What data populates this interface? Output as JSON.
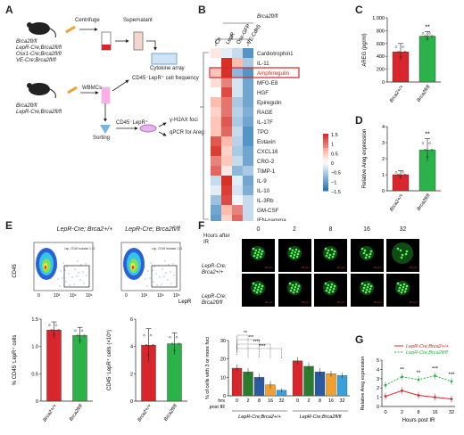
{
  "panels": {
    "A": "A",
    "B": "B",
    "C": "C",
    "D": "D",
    "E": "E",
    "F": "F",
    "G": "G"
  },
  "panel_a": {
    "genotypes1": [
      "Brca2fl/fl",
      "LepR-Cre;Brca2fl/fl",
      "Osx1-Cre;Brca2fl/fl",
      "VE-Cre;Brca2fl/fl"
    ],
    "centrifuge": "Centrifuge",
    "supernatant": "Supernatant",
    "cytokine": "Cytokine array",
    "wbmcs": "WBMCs",
    "genotypes2": [
      "Brca2fl/fl",
      "LepR-Cre;Brca2fl/fl"
    ],
    "freq": "CD45⁻LepR⁺ cell frequency",
    "sorting": "Sorting",
    "cells": "CD45⁻LepR⁺",
    "foci": "γ-H2AX foci",
    "qpcr": "qPCR for Areg"
  },
  "panel_b": {
    "group_label": "Brca2fl/fl",
    "columns": [
      "Ctr",
      "LepR",
      "Osx-GFP",
      "VE-Cdh5"
    ],
    "rows": [
      "Cardiotrophin1",
      "IL-11",
      "Amphiregulin",
      "MFG-E8",
      "HGF",
      "Epiregulin",
      "RAGE",
      "IL-17F",
      "TPO",
      "Eotaxin",
      "CXCL16",
      "CRG-2",
      "TIMP-1",
      "IL-9",
      "IL-10",
      "IL-3Rb",
      "GM-CSF",
      "IFN-gamma"
    ],
    "highlight_row": "Amphiregulin",
    "colorbar_ticks": [
      "1.5",
      "1",
      "0.5",
      "0",
      "−0.5",
      "−1",
      "−1.5"
    ],
    "matrix": [
      [
        0.2,
        -0.2,
        -0.4,
        -1.2
      ],
      [
        0.0,
        1.5,
        0.6,
        -0.6
      ],
      [
        0.5,
        1.6,
        -0.8,
        -1.2
      ],
      [
        0.3,
        0.9,
        -0.3,
        -1.0
      ],
      [
        0.0,
        1.3,
        -0.3,
        -1.0
      ],
      [
        0.6,
        1.0,
        -0.6,
        -1.0
      ],
      [
        0.4,
        1.0,
        -0.5,
        -0.9
      ],
      [
        0.5,
        1.2,
        -0.6,
        -1.0
      ],
      [
        0.5,
        1.1,
        -0.4,
        -1.2
      ],
      [
        1.2,
        0.6,
        -0.5,
        -1.2
      ],
      [
        1.4,
        0.4,
        -0.6,
        -1.0
      ],
      [
        0.9,
        0.5,
        -0.4,
        -1.0
      ],
      [
        1.1,
        0.2,
        -0.8,
        -0.6
      ],
      [
        -0.4,
        1.5,
        -0.2,
        -1.0
      ],
      [
        -0.2,
        1.4,
        -0.3,
        -0.9
      ],
      [
        -0.7,
        1.3,
        -0.1,
        -0.4
      ],
      [
        -1.0,
        0.6,
        0.9,
        -0.4
      ],
      [
        -1.1,
        0.4,
        1.1,
        -0.4
      ]
    ]
  },
  "panel_c": {
    "ylabel": "AREG (pg/ml)",
    "yticks": [
      "0",
      "200",
      "400",
      "600",
      "800",
      "1,000"
    ],
    "sig": "**",
    "groups": [
      "Brca2+/+",
      "Brca2fl/fl"
    ],
    "means": [
      470,
      715
    ],
    "errors": [
      130,
      70
    ]
  },
  "panel_d": {
    "ylabel": "Relative Areg expression",
    "yticks": [
      "0",
      "1",
      "2",
      "3",
      "4"
    ],
    "sig": "**",
    "groups": [
      "Brca2+/+",
      "Brca2fl/fl"
    ],
    "means": [
      1.0,
      2.55
    ],
    "errors": [
      0.25,
      0.7
    ]
  },
  "panel_e": {
    "titles": [
      "LepR-Cre; Brca2+/+",
      "LepR-Cre; Brca2fl/fl"
    ],
    "gates": [
      "Lep, CD45 Isolated 1.32",
      "Lep, CD45 Isolated 1.21"
    ],
    "y_axis": "CD45",
    "x_axis": "LepR",
    "flow_ticks": [
      "0",
      "10³",
      "10⁴",
      "10⁵"
    ],
    "bar1": {
      "ylabel": "% CD45⁻LepR⁺ cells",
      "yticks": [
        "0",
        "0.5",
        "1.0",
        "1.5"
      ],
      "means": [
        1.3,
        1.2
      ],
      "errors": [
        0.15,
        0.15
      ]
    },
    "bar2": {
      "ylabel": "CD45⁻LepR⁺ cells (×10⁵)",
      "yticks": [
        "0",
        "2",
        "4",
        "6"
      ],
      "means": [
        4.1,
        4.2
      ],
      "errors": [
        1.2,
        0.8
      ]
    },
    "groups": [
      "Brca2+/+",
      "Brca2fl/fl"
    ]
  },
  "panel_f": {
    "hours_label": "Hours after IR",
    "timepoints": [
      "0",
      "2",
      "8",
      "16",
      "32"
    ],
    "row_labels": [
      "LepR-Cre; Brca2+/+",
      "LepR-Cre; Brca2fl/fl"
    ],
    "scale": "20 μm",
    "ylabel": "% of cells with 3 or more foci",
    "yticks": [
      "0",
      "10",
      "20",
      "30"
    ],
    "sig": [
      "**",
      "***",
      "****",
      "****"
    ],
    "xrow1": "hrs",
    "xrow2": "post IR",
    "group_labels": [
      "LepR-Cre;Brca2+/+",
      "LepR-Cre;Brca2fl/fl"
    ],
    "means_wt": [
      15,
      13,
      10,
      6,
      3
    ],
    "means_ko": [
      19,
      16,
      13,
      12,
      11
    ],
    "errors_wt": [
      2,
      2,
      2,
      2,
      1
    ],
    "errors_ko": [
      2,
      2,
      2,
      1.5,
      1.5
    ]
  },
  "panel_g": {
    "legend": [
      "LepR-Cre;Brca2+/+",
      "LepR-Cre;Brca2fl/fl"
    ],
    "ylabel": "Relative Areg expression",
    "xlabel": "Hours post IR",
    "yticks": [
      "0",
      "1",
      "2",
      "3",
      "4",
      "5"
    ],
    "xticks": [
      "0",
      "2",
      "8",
      "16",
      "32"
    ],
    "sig": [
      "**",
      "**",
      "***",
      "***"
    ]
  },
  "chart_data": [
    {
      "type": "heatmap",
      "title": "",
      "columns": [
        "Ctr",
        "LepR",
        "Osx-GFP",
        "VE-Cdh5"
      ],
      "rows": [
        "Cardiotrophin1",
        "IL-11",
        "Amphiregulin",
        "MFG-E8",
        "HGF",
        "Epiregulin",
        "RAGE",
        "IL-17F",
        "TPO",
        "Eotaxin",
        "CXCL16",
        "CRG-2",
        "TIMP-1",
        "IL-9",
        "IL-10",
        "IL-3Rb",
        "GM-CSF",
        "IFN-gamma"
      ],
      "range": [
        -1.5,
        1.5
      ]
    },
    {
      "type": "bar",
      "categories": [
        "Brca2+/+",
        "Brca2fl/fl"
      ],
      "values": [
        470,
        715
      ],
      "ylabel": "AREG (pg/ml)",
      "ylim": [
        0,
        1000
      ]
    },
    {
      "type": "bar",
      "categories": [
        "Brca2+/+",
        "Brca2fl/fl"
      ],
      "values": [
        1.0,
        2.55
      ],
      "ylabel": "Relative Areg expression",
      "ylim": [
        0,
        4
      ]
    },
    {
      "type": "bar",
      "categories": [
        "Brca2+/+",
        "Brca2fl/fl"
      ],
      "values": [
        1.3,
        1.2
      ],
      "ylabel": "% CD45⁻LepR⁺ cells",
      "ylim": [
        0,
        1.5
      ]
    },
    {
      "type": "bar",
      "categories": [
        "Brca2+/+",
        "Brca2fl/fl"
      ],
      "values": [
        4.1,
        4.2
      ],
      "ylabel": "CD45⁻LepR⁺ cells (×10⁵)",
      "ylim": [
        0,
        6
      ]
    },
    {
      "type": "bar",
      "categories": [
        "0",
        "2",
        "8",
        "16",
        "32"
      ],
      "series": [
        {
          "name": "LepR-Cre;Brca2+/+",
          "values": [
            15,
            13,
            10,
            6,
            3
          ]
        },
        {
          "name": "LepR-Cre;Brca2fl/fl",
          "values": [
            19,
            16,
            13,
            12,
            11
          ]
        }
      ],
      "ylabel": "% of cells with 3 or more foci",
      "ylim": [
        0,
        30
      ]
    },
    {
      "type": "line",
      "x": [
        "0",
        "2",
        "8",
        "16",
        "32"
      ],
      "series": [
        {
          "name": "LepR-Cre;Brca2+/+",
          "values": [
            1.1,
            1.7,
            1.2,
            1.0,
            0.8
          ]
        },
        {
          "name": "LepR-Cre;Brca2fl/fl",
          "values": [
            2.3,
            3.2,
            2.9,
            3.3,
            2.7
          ]
        }
      ],
      "ylabel": "Relative Areg expression",
      "xlabel": "Hours post IR",
      "ylim": [
        0,
        5
      ]
    }
  ],
  "colors": {
    "red": "#d7262c",
    "green": "#2bb34a",
    "heat_low": "#2a7ab8",
    "heat_high": "#d73027"
  }
}
